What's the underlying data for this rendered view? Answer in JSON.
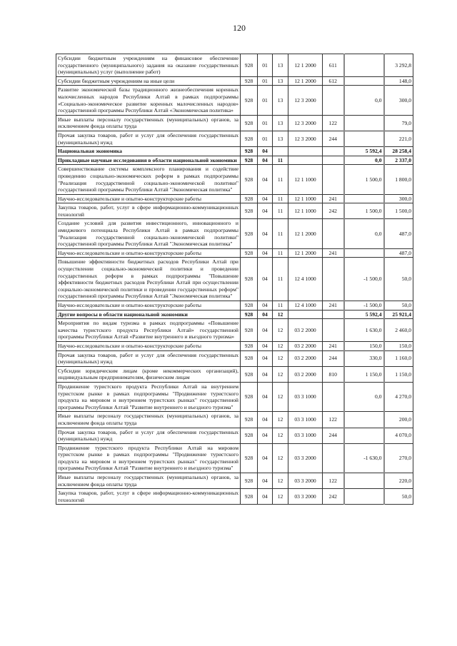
{
  "page_number": "120",
  "rows": [
    {
      "desc": "Субсидии бюджетным учреждениям на финансовое обеспечение государственного (муниципального) задания на оказание государственных (муниципальных) услуг (выполнение работ)",
      "ved": "928",
      "rz": "01",
      "pr": "13",
      "csr": "12 1 2000",
      "vr": "611",
      "change": "",
      "total": "3 292,8"
    },
    {
      "desc": "Субсидии бюджетным учреждениям на иные цели",
      "ved": "928",
      "rz": "01",
      "pr": "13",
      "csr": "12 1 2000",
      "vr": "612",
      "change": "",
      "total": "148,0"
    },
    {
      "desc": "Развитие экономической базы традиционного жизнеобеспечения коренных малочисленных народов Республики Алтай в рамках подпрограммы «Социально-экономическое развитие коренных малочисленных народов» государственной программы Республики Алтай «Экономическая политика»",
      "ved": "928",
      "rz": "01",
      "pr": "13",
      "csr": "12 3 2000",
      "vr": "",
      "change": "0,0",
      "total": "300,0"
    },
    {
      "desc": "Иные выплаты персоналу государственных (муниципальных) органов, за исключением фонда оплаты труда",
      "ved": "928",
      "rz": "01",
      "pr": "13",
      "csr": "12 3 2000",
      "vr": "122",
      "change": "",
      "total": "79,0"
    },
    {
      "desc": "Прочая закупка товаров, работ и услуг для обеспечения государственных (муниципальных) нужд",
      "ved": "928",
      "rz": "01",
      "pr": "13",
      "csr": "12 3 2000",
      "vr": "244",
      "change": "",
      "total": "221,0"
    },
    {
      "bold": true,
      "desc": "Национальная экономика",
      "ved": "928",
      "rz": "04",
      "pr": "",
      "csr": "",
      "vr": "",
      "change": "5 592,4",
      "total": "28 258,4"
    },
    {
      "bold": true,
      "desc": "Прикладные научные исследования в области национальной экономики",
      "ved": "928",
      "rz": "04",
      "pr": "11",
      "csr": "",
      "vr": "",
      "change": "0,0",
      "total": "2 337,0"
    },
    {
      "desc": "Совершенствование системы комплексного планирования и содействие проведению социально-экономических реформ в рамках подпрограммы \"Реализация государственной социально-экономической политики\" государственной программы Республики Алтай \"Экономическая политика\"",
      "ved": "928",
      "rz": "04",
      "pr": "11",
      "csr": "12 1 1000",
      "vr": "",
      "change": "1 500,0",
      "total": "1 800,0"
    },
    {
      "desc": "Научно-исследовательские и опытно-конструкторские работы",
      "ved": "928",
      "rz": "04",
      "pr": "11",
      "csr": "12 1 1000",
      "vr": "241",
      "change": "",
      "total": "300,0"
    },
    {
      "desc": "Закупка товаров, работ, услуг в сфере информационно-коммуникационных технологий",
      "ved": "928",
      "rz": "04",
      "pr": "11",
      "csr": "12 1 1000",
      "vr": "242",
      "change": "1 500,0",
      "total": "1 500,0"
    },
    {
      "desc": "Создание условий для развития инвестиционного, инновационного и имиджевого потенциала Республики Алтай в рамках подпрограммы \"Реализация государственной социально-экономической политики\" государственной программы Республики Алтай \"Экономическая политика\"",
      "ved": "928",
      "rz": "04",
      "pr": "11",
      "csr": "12 1 2000",
      "vr": "",
      "change": "0,0",
      "total": "487,0"
    },
    {
      "desc": "Научно-исследовательские и опытно-конструкторские работы",
      "ved": "928",
      "rz": "04",
      "pr": "11",
      "csr": "12 1 2000",
      "vr": "241",
      "change": "",
      "total": "487,0"
    },
    {
      "desc": "Повышение эффективности бюджетных расходов Республики Алтай при осуществлении социально-экономической политики и проведении государственных реформ в рамках подпрограммы \"Повышение эффективности бюджетных расходов Республики Алтай при осуществлении социально-экономической политики и проведении государственных реформ\" государственной программы Республики Алтай \"Экономическая политика\"",
      "ved": "928",
      "rz": "04",
      "pr": "11",
      "csr": "12 4 1000",
      "vr": "",
      "change": "-1 500,0",
      "total": "50,0"
    },
    {
      "desc": "Научно-исследовательские и опытно-конструкторские работы",
      "ved": "928",
      "rz": "04",
      "pr": "11",
      "csr": "12 4 1000",
      "vr": "241",
      "change": "-1 500,0",
      "total": "50,0"
    },
    {
      "bold": true,
      "desc": "Другие вопросы в области национальной экономики",
      "ved": "928",
      "rz": "04",
      "pr": "12",
      "csr": "",
      "vr": "",
      "change": "5 592,4",
      "total": "25 921,4"
    },
    {
      "desc": "Мероприятия по видам туризма в рамках подпрограммы «Повышение качества туристского продукта Республики Алтай» государственной программы Республики Алтай «Развитие внутреннего и въездного туризма»",
      "ved": "928",
      "rz": "04",
      "pr": "12",
      "csr": "03 2 2000",
      "vr": "",
      "change": "1 630,0",
      "total": "2 460,0"
    },
    {
      "desc": "Научно-исследовательские и опытно-конструкторские работы",
      "ved": "928",
      "rz": "04",
      "pr": "12",
      "csr": "03 2 2000",
      "vr": "241",
      "change": "150,0",
      "total": "150,0"
    },
    {
      "desc": "Прочая закупка товаров, работ и услуг для обеспечения государственных (муниципальных) нужд",
      "ved": "928",
      "rz": "04",
      "pr": "12",
      "csr": "03 2 2000",
      "vr": "244",
      "change": "330,0",
      "total": "1 160,0"
    },
    {
      "desc": "Субсидии юридическим лицам (кроме некоммерческих организаций), индивидуальным предпринимателям, физическим лицам",
      "ved": "928",
      "rz": "04",
      "pr": "12",
      "csr": "03 2 2000",
      "vr": "810",
      "change": "1 150,0",
      "total": "1 150,0"
    },
    {
      "desc": "Продвижение туристского продукта Республики Алтай на внутреннем туристском рынке в рамках подпрограммы \"Продвижение туристского продукта на мировом и внутреннем туристских рынках\" государственной программы Республики Алтай \"Развитие внутреннего и въездного туризма\"",
      "ved": "928",
      "rz": "04",
      "pr": "12",
      "csr": "03 3 1000",
      "vr": "",
      "change": "0,0",
      "total": "4 270,0"
    },
    {
      "desc": "Иные выплаты персоналу государственных (муниципальных) органов, за исключением фонда оплаты труда",
      "ved": "928",
      "rz": "04",
      "pr": "12",
      "csr": "03 3 1000",
      "vr": "122",
      "change": "",
      "total": "200,0"
    },
    {
      "desc": "Прочая закупка товаров, работ и услуг для обеспечения государственных (муниципальных) нужд",
      "ved": "928",
      "rz": "04",
      "pr": "12",
      "csr": "03 3 1000",
      "vr": "244",
      "change": "",
      "total": "4 070,0"
    },
    {
      "desc": "Продвижение туристского продукта Республики Алтай на мировом туристском рынке в рамках подпрограммы \"Продвижение туристского продукта на мировом и внутреннем туристских рынках\" государственной программы Республики Алтай \"Развитие внутреннего и въездного туризма\"",
      "ved": "928",
      "rz": "04",
      "pr": "12",
      "csr": "03 3 2000",
      "vr": "",
      "change": "-1 630,0",
      "total": "270,0"
    },
    {
      "desc": "Иные выплаты персоналу государственных (муниципальных) органов, за исключением фонда оплаты труда",
      "ved": "928",
      "rz": "04",
      "pr": "12",
      "csr": "03 3 2000",
      "vr": "122",
      "change": "",
      "total": "220,0"
    },
    {
      "desc": "Закупка товаров, работ, услуг в сфере информационно-коммуникационных технологий",
      "ved": "928",
      "rz": "04",
      "pr": "12",
      "csr": "03 3 2000",
      "vr": "242",
      "change": "",
      "total": "50,0"
    }
  ]
}
